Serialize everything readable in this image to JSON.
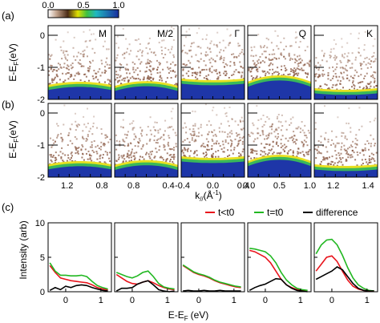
{
  "figure": {
    "row_labels": [
      "(a)",
      "(b)",
      "(c)"
    ],
    "colorbar": {
      "ticks": [
        "0.0",
        "0.5",
        "1.0"
      ],
      "colors": [
        "#ffffff",
        "#c2a38d",
        "#4a2a14",
        "#e0e000",
        "#40c040",
        "#20b8c0",
        "#1a2e9e"
      ]
    },
    "heatmap_colors": {
      "background": "#ffffff",
      "noise": "#8a5a44",
      "band_edge": "#e8e020",
      "band_mid": "#3ab85a",
      "band_core": "#1e36a8"
    }
  },
  "chart_data": [
    {
      "type": "heatmap",
      "id": "row-a",
      "panel_labels": [
        "M",
        "M/2",
        "Γ",
        "Q",
        "K"
      ],
      "ylabel": "E-E",
      "ylabel_sub": "F",
      "ylabel_unit": "(eV)",
      "ylim": [
        -2.0,
        0.3
      ],
      "yticks": [
        "0",
        "-1",
        "-2"
      ],
      "band_top": [
        -1.55,
        -1.58,
        -1.35,
        -1.45,
        -1.65
      ],
      "band_top_center_shift": [
        0.1,
        0.15,
        -0.05,
        0.2,
        -0.05
      ]
    },
    {
      "type": "heatmap",
      "id": "row-b",
      "ylabel": "E-E",
      "ylabel_sub": "F",
      "ylabel_unit": "(eV)",
      "ylim": [
        -2.0,
        0.3
      ],
      "yticks": [
        "0",
        "-1",
        "-2"
      ],
      "band_top": [
        -1.6,
        -1.62,
        -1.35,
        -1.5,
        -1.6
      ],
      "band_top_center_shift": [
        0.1,
        0.15,
        -0.05,
        0.2,
        -0.05
      ],
      "xlabel_main": "k",
      "xlabel_sub": "//",
      "xlabel_unit": "(Å",
      "xlabel_sup": "-1",
      "xlabel_close": ")",
      "xticks": [
        [
          "1.2",
          "0.8"
        ],
        [
          "0.8",
          "0.4"
        ],
        [
          "-0.4",
          "0.0",
          "0.4"
        ],
        [
          "0.0",
          "0.5",
          "1.0"
        ],
        [
          "1.2",
          "1.4"
        ]
      ]
    },
    {
      "type": "line",
      "id": "row-c",
      "ylabel": "Intensity (arb)",
      "ylim": [
        0,
        10
      ],
      "yticks": [
        "0",
        "5",
        "10"
      ],
      "xlim": [
        -0.5,
        1.3
      ],
      "xticks": [
        "0",
        "1"
      ],
      "xlabel": "E-E",
      "xlabel_sub": "F",
      "xlabel_unit": "(eV)",
      "legend": [
        "t<t0",
        "t=t0",
        "difference"
      ],
      "legend_colors": [
        "#e8141c",
        "#22b822",
        "#000000"
      ],
      "x": [
        -0.45,
        -0.3,
        -0.15,
        0.0,
        0.15,
        0.3,
        0.45,
        0.6,
        0.75,
        0.9,
        1.05,
        1.2
      ],
      "panels": [
        {
          "t_lt_t0": [
            3.8,
            2.8,
            2.0,
            1.8,
            1.6,
            1.5,
            1.4,
            1.3,
            1.0,
            0.6,
            0.4,
            0.3
          ],
          "t_eq_t0": [
            4.2,
            3.0,
            2.4,
            2.4,
            2.3,
            2.3,
            2.4,
            2.2,
            1.5,
            0.9,
            0.6,
            0.4
          ],
          "difference": [
            0.2,
            0.6,
            0.3,
            0.8,
            0.6,
            0.9,
            1.0,
            0.9,
            0.6,
            0.4,
            0.2,
            0.1
          ]
        },
        {
          "t_lt_t0": [
            2.5,
            2.0,
            1.5,
            1.2,
            1.1,
            1.4,
            1.6,
            1.3,
            0.9,
            0.6,
            0.4,
            0.3
          ],
          "t_eq_t0": [
            2.8,
            2.5,
            2.2,
            2.0,
            2.3,
            2.8,
            3.0,
            2.2,
            1.2,
            0.7,
            0.5,
            0.4
          ],
          "difference": [
            0.1,
            0.5,
            0.5,
            0.6,
            1.1,
            1.4,
            1.6,
            1.0,
            0.3,
            0.1,
            0.0,
            0.1
          ]
        },
        {
          "t_lt_t0": [
            3.8,
            3.3,
            2.8,
            2.5,
            2.3,
            2.0,
            1.6,
            1.3,
            1.1,
            0.9,
            0.7,
            0.6
          ],
          "t_eq_t0": [
            3.9,
            3.4,
            2.9,
            2.6,
            2.4,
            2.1,
            1.7,
            1.4,
            1.2,
            1.0,
            0.8,
            0.7
          ],
          "difference": [
            0.1,
            0.2,
            0.1,
            0.1,
            0.2,
            0.1,
            0.1,
            0.2,
            0.1,
            0.1,
            0.1,
            0.1
          ]
        },
        {
          "t_lt_t0": [
            6.0,
            5.8,
            5.4,
            5.0,
            4.2,
            3.0,
            1.8,
            1.0,
            0.6,
            0.3,
            0.2,
            0.2
          ],
          "t_eq_t0": [
            6.3,
            6.2,
            6.0,
            5.8,
            5.2,
            4.2,
            2.8,
            1.7,
            1.0,
            0.5,
            0.3,
            0.2
          ],
          "difference": [
            0.2,
            0.6,
            0.9,
            1.1,
            1.5,
            1.9,
            1.8,
            1.0,
            0.5,
            0.2,
            0.1,
            0.0
          ]
        },
        {
          "t_lt_t0": [
            3.0,
            4.0,
            5.0,
            5.2,
            4.4,
            3.0,
            1.7,
            0.8,
            0.4,
            0.2,
            0.1,
            0.1
          ],
          "t_eq_t0": [
            5.5,
            6.8,
            7.5,
            7.6,
            6.8,
            5.3,
            3.5,
            2.0,
            1.0,
            0.5,
            0.2,
            0.1
          ],
          "difference": [
            1.8,
            2.2,
            2.6,
            3.0,
            3.6,
            3.2,
            2.2,
            1.2,
            0.5,
            0.2,
            0.1,
            0.1
          ]
        }
      ]
    }
  ]
}
